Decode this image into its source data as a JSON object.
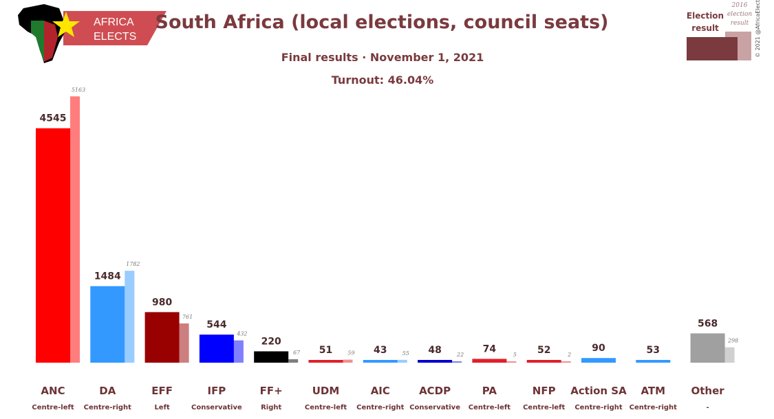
{
  "brand": {
    "line1": "AFRICA",
    "line2": "ELECTS",
    "banner_color": "#cf4d52",
    "logo_icons": [
      "africa-map-icon",
      "star-icon"
    ]
  },
  "header": {
    "title": "South Africa (local elections, council seats)",
    "subtitle": "Final results · November 1, 2021",
    "turnout": "Turnout: 46.04%"
  },
  "legend": {
    "current_line1": "Election",
    "current_line2": "result",
    "previous_line1": "2016",
    "previous_line2": "election",
    "previous_line3": "result",
    "current_color": "#7a3a3e",
    "previous_color": "#c9a2a4"
  },
  "copyright": "© 2021 @AfricaElect",
  "chart_data": {
    "type": "bar",
    "ylim": [
      0,
      5300
    ],
    "series": [
      {
        "values": [
          4545,
          1484,
          980,
          544,
          220,
          51,
          43,
          48,
          74,
          52,
          90,
          53,
          568
        ]
      },
      {
        "values": [
          5163,
          1782,
          761,
          432,
          67,
          59,
          55,
          22,
          5,
          2,
          null,
          null,
          298
        ]
      }
    ],
    "parties": [
      {
        "name": "ANC",
        "ideology": "Centre-left",
        "seats": 4545,
        "prev_seats": 5163,
        "label": "4545",
        "prev_label": "5163",
        "color": "#ff0000",
        "prev_color": "#ff7d7d"
      },
      {
        "name": "DA",
        "ideology": "Centre-right",
        "seats": 1484,
        "prev_seats": 1782,
        "label": "1484",
        "prev_label": "1782",
        "color": "#3399ff",
        "prev_color": "#99ccff"
      },
      {
        "name": "EFF",
        "ideology": "Left",
        "seats": 980,
        "prev_seats": 761,
        "label": "980",
        "prev_label": "761",
        "color": "#990000",
        "prev_color": "#cc7f7f"
      },
      {
        "name": "IFP",
        "ideology": "Conservative",
        "seats": 544,
        "prev_seats": 432,
        "label": "544",
        "prev_label": "432",
        "color": "#0000ff",
        "prev_color": "#7f7fff"
      },
      {
        "name": "FF+",
        "ideology": "Right",
        "seats": 220,
        "prev_seats": 67,
        "label": "220",
        "prev_label": "67",
        "color": "#000000",
        "prev_color": "#7f7f7f"
      },
      {
        "name": "UDM",
        "ideology": "Centre-left",
        "seats": 51,
        "prev_seats": 59,
        "label": "51",
        "prev_label": "59",
        "color": "#e01f2a",
        "prev_color": "#ef8f94"
      },
      {
        "name": "AIC",
        "ideology": "Centre-right",
        "seats": 43,
        "prev_seats": 55,
        "label": "43",
        "prev_label": "55",
        "color": "#3399ff",
        "prev_color": "#99ccff"
      },
      {
        "name": "ACDP",
        "ideology": "Conservative",
        "seats": 48,
        "prev_seats": 22,
        "label": "48",
        "prev_label": "22",
        "color": "#0000cc",
        "prev_color": "#7f7fe5"
      },
      {
        "name": "PA",
        "ideology": "Centre-left",
        "seats": 74,
        "prev_seats": 5,
        "label": "74",
        "prev_label": "5",
        "color": "#e01f2a",
        "prev_color": "#ef8f94"
      },
      {
        "name": "NFP",
        "ideology": "Centre-left",
        "seats": 52,
        "prev_seats": 2,
        "label": "52",
        "prev_label": "2",
        "color": "#e01f2a",
        "prev_color": "#ef8f94"
      },
      {
        "name": "Action SA",
        "ideology": "Centre-right",
        "seats": 90,
        "prev_seats": null,
        "label": "90",
        "prev_label": "",
        "color": "#3399ff",
        "prev_color": "#99ccff"
      },
      {
        "name": "ATM",
        "ideology": "Centre-right",
        "seats": 53,
        "prev_seats": null,
        "label": "53",
        "prev_label": "",
        "color": "#3399ff",
        "prev_color": "#99ccff"
      },
      {
        "name": "Other",
        "ideology": "-",
        "seats": 568,
        "prev_seats": 298,
        "label": "568",
        "prev_label": "298",
        "color": "#a0a0a0",
        "prev_color": "#d0d0d0"
      }
    ]
  }
}
